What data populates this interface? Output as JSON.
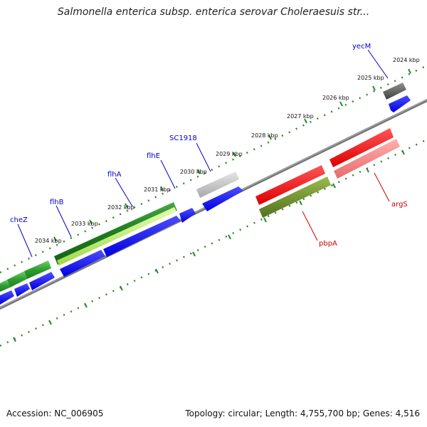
{
  "title": "Salmonella enterica subsp. enterica serovar Choleraesuis str...",
  "footer": {
    "accession": "Accession: NC_006905",
    "summary": "Topology: circular; Length: 4,755,700 bp; Genes: 4,516"
  },
  "colors": {
    "backbone": "#808080",
    "ticks": "#2e8b2e",
    "cds": "#0000ff",
    "forward_label": "#0000cc",
    "reverse_label": "#cc0000",
    "gene_green": "#2e9e2e",
    "gene_dark_green": "#1e7a1e",
    "gene_light_green": "#b6e86a",
    "gene_gray": "#b8b8b8",
    "gene_dark_gray": "#5a5a5a",
    "gene_red": "#ee0000",
    "gene_pink": "#f08080",
    "gene_olive": "#6b8e23"
  },
  "kbp_labels": [
    "2024 kbp",
    "2025 kbp",
    "2026 kbp",
    "2027 kbp",
    "2028 kbp",
    "2029 kbp",
    "2030 kbp",
    "2031 kbp",
    "2032 kbp",
    "2033 kbp",
    "2034 kbp"
  ],
  "forward_genes": [
    "yecM",
    "SC1918",
    "flhE",
    "flhA",
    "flhB",
    "cheZ"
  ],
  "reverse_genes": [
    "argS",
    "pbpA"
  ]
}
